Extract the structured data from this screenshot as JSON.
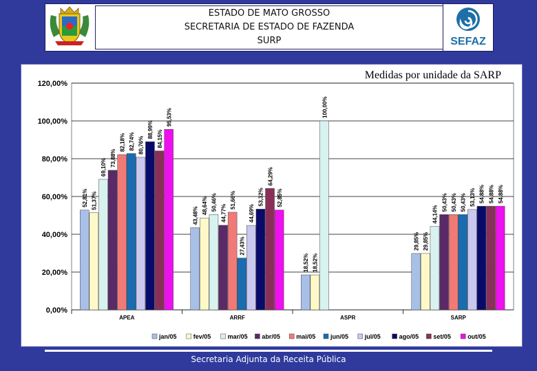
{
  "header": {
    "line1": "ESTADO DE MATO GROSSO",
    "line2": "SECRETARIA DE ESTADO DE FAZENDA",
    "line3": "SURP"
  },
  "logo": {
    "icon": "sefaz-logo-icon",
    "text": "SEFAZ",
    "color": "#1e6fa8"
  },
  "footer": {
    "text": "Secretaria Adjunta da Receita Pública"
  },
  "chart_data": {
    "type": "bar",
    "title": "Medidas por unidade da SARP",
    "categories": [
      "APEA",
      "ARRF",
      "ASPR",
      "SARP"
    ],
    "ylim": [
      0,
      120
    ],
    "yticks": [
      "0,00%",
      "20,00%",
      "40,00%",
      "60,00%",
      "80,00%",
      "100,00%",
      "120,00%"
    ],
    "grid": true,
    "legend_position": "bottom",
    "series": [
      {
        "name": "jan/05",
        "color": "#a8c0e8",
        "values": [
          52.81,
          43.48,
          18.52,
          29.85
        ],
        "labels": [
          "52,81%",
          "43,48%",
          "18,52%",
          "29,85%"
        ]
      },
      {
        "name": "fev/05",
        "color": "#fff8c8",
        "values": [
          51.37,
          48.64,
          18.52,
          29.85
        ],
        "labels": [
          "51,37%",
          "48,64%",
          "18,52%",
          "29,85%"
        ]
      },
      {
        "name": "mar/05",
        "color": "#d8f2f0",
        "values": [
          69.1,
          50.46,
          100.0,
          44.14
        ],
        "labels": [
          "69,10%",
          "50,46%",
          "100,00%",
          "44,14%"
        ]
      },
      {
        "name": "abr/05",
        "color": "#5a2a68",
        "values": [
          73.88,
          44.77,
          null,
          50.43
        ],
        "labels": [
          "73,88%",
          "44,77%",
          "",
          "50,43%"
        ]
      },
      {
        "name": "mai/05",
        "color": "#f07a78",
        "values": [
          82.18,
          51.66,
          null,
          50.43
        ],
        "labels": [
          "82,18%",
          "51,66%",
          "",
          "50,43%"
        ]
      },
      {
        "name": "jun/05",
        "color": "#1a6cb0",
        "values": [
          82.74,
          27.43,
          null,
          50.43
        ],
        "labels": [
          "82,74%",
          "27,43%",
          "",
          "50,43%"
        ]
      },
      {
        "name": "jul/05",
        "color": "#c8c8f0",
        "values": [
          80.76,
          44.69,
          null,
          53.13
        ],
        "labels": [
          "80,76%",
          "44,69%",
          "",
          "53,13%"
        ]
      },
      {
        "name": "ago/05",
        "color": "#0a0a6a",
        "values": [
          88.99,
          53.32,
          null,
          54.88
        ],
        "labels": [
          "88,99%",
          "53,32%",
          "",
          "54,88%"
        ]
      },
      {
        "name": "set/05",
        "color": "#8a3058",
        "values": [
          84.15,
          64.29,
          null,
          54.88
        ],
        "labels": [
          "84,15%",
          "64,29%",
          "",
          "54,88%"
        ]
      },
      {
        "name": "out/05",
        "color": "#ee10ee",
        "values": [
          95.53,
          52.85,
          null,
          54.88
        ],
        "labels": [
          "95,53%",
          "52,85%",
          "",
          "54,88%"
        ]
      }
    ]
  }
}
